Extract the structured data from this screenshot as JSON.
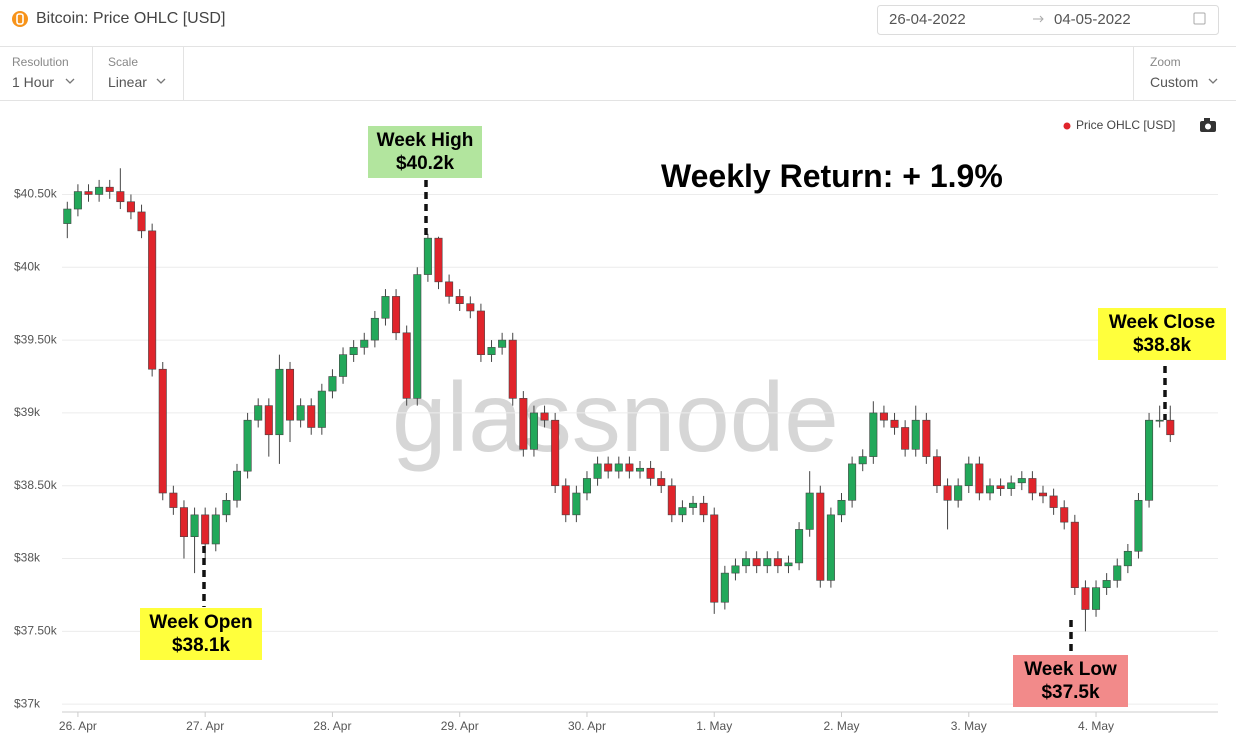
{
  "header": {
    "title": "Bitcoin: Price OHLC [USD]",
    "date_start": "26-04-2022",
    "date_end": "04-05-2022"
  },
  "controls": [
    {
      "label": "Resolution",
      "value": "1 Hour"
    },
    {
      "label": "Scale",
      "value": "Linear"
    },
    {
      "label": "Zoom",
      "value": "Custom"
    }
  ],
  "annotations": {
    "weekly_return": "Weekly Return: + 1.9%",
    "week_high": {
      "title": "Week High",
      "label": "$40.2k"
    },
    "week_open": {
      "title": "Week Open",
      "label": "$38.1k"
    },
    "week_low": {
      "title": "Week Low",
      "label": "$37.5k"
    },
    "week_close": {
      "title": "Week Close",
      "label": "$38.8k"
    }
  },
  "watermark": "glassnode",
  "chart_data": {
    "type": "candlestick",
    "up_color": "#22a85a",
    "down_color": "#e0242b",
    "grid": true,
    "xlim": [
      -3,
      215
    ],
    "xticks": [
      {
        "value": 0,
        "label": "26. Apr"
      },
      {
        "value": 24,
        "label": "27. Apr"
      },
      {
        "value": 48,
        "label": "28. Apr"
      },
      {
        "value": 72,
        "label": "29. Apr"
      },
      {
        "value": 96,
        "label": "30. Apr"
      },
      {
        "value": 120,
        "label": "1. May"
      },
      {
        "value": 144,
        "label": "2. May"
      },
      {
        "value": 168,
        "label": "3. May"
      },
      {
        "value": 192,
        "label": "4. May"
      }
    ],
    "ylim": [
      36960,
      41080
    ],
    "yticks": [
      {
        "value": 37000,
        "label": "$37k"
      },
      {
        "value": 37500,
        "label": "$37.50k"
      },
      {
        "value": 38000,
        "label": "$38k"
      },
      {
        "value": 38500,
        "label": "$38.50k"
      },
      {
        "value": 39000,
        "label": "$39k"
      },
      {
        "value": 39500,
        "label": "$39.50k"
      },
      {
        "value": 40000,
        "label": "$40k"
      },
      {
        "value": 40500,
        "label": "$40.50k"
      }
    ],
    "x": [
      -2,
      0,
      2,
      4,
      6,
      8,
      10,
      12,
      14,
      16,
      18,
      20,
      22,
      24,
      26,
      28,
      30,
      32,
      34,
      36,
      38,
      40,
      42,
      44,
      46,
      48,
      50,
      52,
      54,
      56,
      58,
      60,
      62,
      64,
      66,
      68,
      70,
      72,
      74,
      76,
      78,
      80,
      82,
      84,
      86,
      88,
      90,
      92,
      94,
      96,
      98,
      100,
      102,
      104,
      106,
      108,
      110,
      112,
      114,
      116,
      118,
      120,
      122,
      124,
      126,
      128,
      130,
      132,
      134,
      136,
      138,
      140,
      142,
      144,
      146,
      148,
      150,
      152,
      154,
      156,
      158,
      160,
      162,
      164,
      166,
      168,
      170,
      172,
      174,
      176,
      178,
      180,
      182,
      184,
      186,
      188,
      190,
      192,
      194,
      196,
      198,
      200,
      202,
      204,
      206
    ],
    "series": [
      {
        "name": "Price OHLC [USD]",
        "color": "#e0242b",
        "open": [
          40300,
          40400,
          40520,
          40500,
          40550,
          40520,
          40450,
          40380,
          40250,
          39300,
          38450,
          38350,
          38150,
          38300,
          38100,
          38300,
          38400,
          38600,
          38950,
          39050,
          38850,
          39300,
          38950,
          39050,
          38900,
          39150,
          39250,
          39400,
          39450,
          39500,
          39650,
          39800,
          39550,
          39100,
          39950,
          40200,
          39900,
          39800,
          39750,
          39700,
          39400,
          39450,
          39500,
          39100,
          38750,
          39000,
          38950,
          38500,
          38300,
          38450,
          38550,
          38650,
          38600,
          38650,
          38600,
          38620,
          38550,
          38500,
          38300,
          38350,
          38380,
          38300,
          37700,
          37900,
          37950,
          38000,
          37950,
          38000,
          37950,
          37970,
          38200,
          38450,
          37850,
          38300,
          38400,
          38650,
          38700,
          39000,
          38950,
          38900,
          38750,
          38950,
          38700,
          38500,
          38400,
          38500,
          38650,
          38450,
          38500,
          38480,
          38520,
          38550,
          38450,
          38430,
          38350,
          38250,
          37800,
          37650,
          37800,
          37850,
          37950,
          38050,
          38400,
          38950,
          38950
        ],
        "high": [
          40450,
          40570,
          40570,
          40600,
          40600,
          40680,
          40500,
          40430,
          40300,
          39350,
          38500,
          38400,
          38350,
          38350,
          38350,
          38450,
          38650,
          39000,
          39100,
          39100,
          39400,
          39350,
          39100,
          39100,
          39200,
          39300,
          39450,
          39500,
          39550,
          39700,
          39850,
          39850,
          39600,
          40000,
          40230,
          40210,
          39950,
          39850,
          39800,
          39750,
          39500,
          39550,
          39550,
          39150,
          39050,
          39050,
          39000,
          38550,
          38500,
          38600,
          38700,
          38700,
          38700,
          38700,
          38670,
          38670,
          38600,
          38550,
          38400,
          38430,
          38430,
          38350,
          37950,
          38000,
          38050,
          38050,
          38050,
          38050,
          38020,
          38250,
          38600,
          38500,
          38350,
          38450,
          38700,
          38750,
          39080,
          39050,
          39000,
          38950,
          39050,
          39000,
          38750,
          38550,
          38550,
          38700,
          38700,
          38550,
          38550,
          38570,
          38600,
          38600,
          38500,
          38480,
          38400,
          38300,
          37850,
          37850,
          37900,
          38000,
          38100,
          38450,
          39000,
          39050,
          39050
        ],
        "low": [
          40200,
          40350,
          40450,
          40450,
          40470,
          40400,
          40330,
          40200,
          39250,
          38400,
          38300,
          38000,
          37900,
          38000,
          38050,
          38250,
          38350,
          38550,
          38900,
          38700,
          38650,
          38800,
          38900,
          38850,
          38850,
          39100,
          39200,
          39350,
          39400,
          39450,
          39600,
          39500,
          39050,
          39050,
          39900,
          39850,
          39750,
          39700,
          39650,
          39350,
          39350,
          39400,
          39050,
          38700,
          38700,
          38900,
          38450,
          38250,
          38250,
          38400,
          38500,
          38550,
          38550,
          38550,
          38550,
          38500,
          38450,
          38250,
          38250,
          38300,
          38250,
          37620,
          37650,
          37850,
          37900,
          37900,
          37900,
          37900,
          37900,
          37920,
          38150,
          37800,
          37800,
          38250,
          38350,
          38600,
          38650,
          38900,
          38850,
          38700,
          38700,
          38650,
          38450,
          38200,
          38350,
          38450,
          38400,
          38400,
          38430,
          38430,
          38470,
          38400,
          38380,
          38300,
          38200,
          37750,
          37500,
          37600,
          37750,
          37800,
          37900,
          38000,
          38350,
          38900,
          38800
        ],
        "close": [
          40400,
          40520,
          40500,
          40550,
          40520,
          40450,
          40380,
          40250,
          39300,
          38450,
          38350,
          38150,
          38300,
          38100,
          38300,
          38400,
          38600,
          38950,
          39050,
          38850,
          39300,
          38950,
          39050,
          38900,
          39150,
          39250,
          39400,
          39450,
          39500,
          39650,
          39800,
          39550,
          39100,
          39950,
          40200,
          39900,
          39800,
          39750,
          39700,
          39400,
          39450,
          39500,
          39100,
          38750,
          39000,
          38950,
          38500,
          38300,
          38450,
          38550,
          38650,
          38600,
          38650,
          38600,
          38620,
          38550,
          38500,
          38300,
          38350,
          38380,
          38300,
          37700,
          37900,
          37950,
          38000,
          37950,
          38000,
          37950,
          37970,
          38200,
          38450,
          37850,
          38300,
          38400,
          38650,
          38700,
          39000,
          38950,
          38900,
          38750,
          38950,
          38700,
          38500,
          38400,
          38500,
          38650,
          38450,
          38500,
          38480,
          38520,
          38550,
          38450,
          38430,
          38350,
          38250,
          37800,
          37650,
          37800,
          37850,
          37950,
          38050,
          38400,
          38950,
          38950,
          38850
        ]
      }
    ]
  }
}
